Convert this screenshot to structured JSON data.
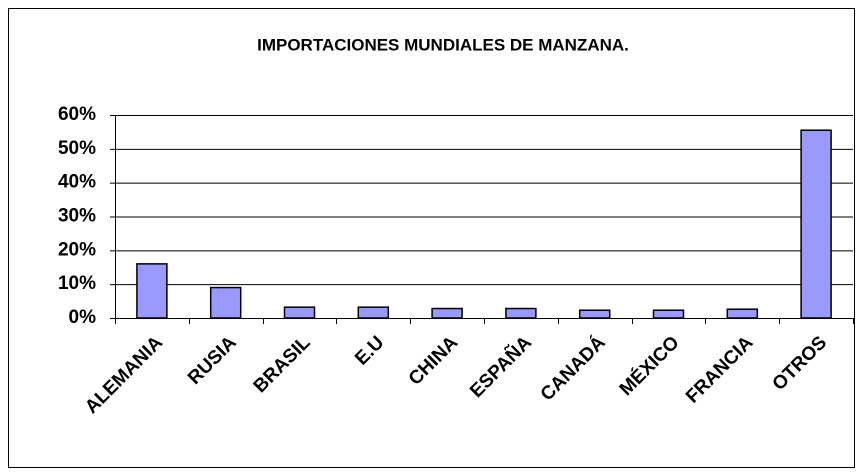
{
  "chart_data": {
    "type": "bar",
    "title": "IMPORTACIONES MUNDIALES DE MANZANA.",
    "categories": [
      "ALEMANIA",
      "RUSIA",
      "BRASIL",
      "E.U",
      "CHINA",
      "ESPAÑA",
      "CANADÁ",
      "MÉXICO",
      "FRANCIA",
      "OTROS"
    ],
    "values": [
      16,
      9,
      3.2,
      3.2,
      2.8,
      2.8,
      2.3,
      2.3,
      2.6,
      55.5
    ],
    "color": "#9999ff",
    "ylim": [
      0,
      60
    ],
    "yticks": [
      {
        "value": 0,
        "label": "0%"
      },
      {
        "value": 10,
        "label": "10%"
      },
      {
        "value": 20,
        "label": "20%"
      },
      {
        "value": 30,
        "label": "30%"
      },
      {
        "value": 40,
        "label": "40%"
      },
      {
        "value": 50,
        "label": "50%"
      },
      {
        "value": 60,
        "label": "60%"
      }
    ],
    "grid": true
  }
}
